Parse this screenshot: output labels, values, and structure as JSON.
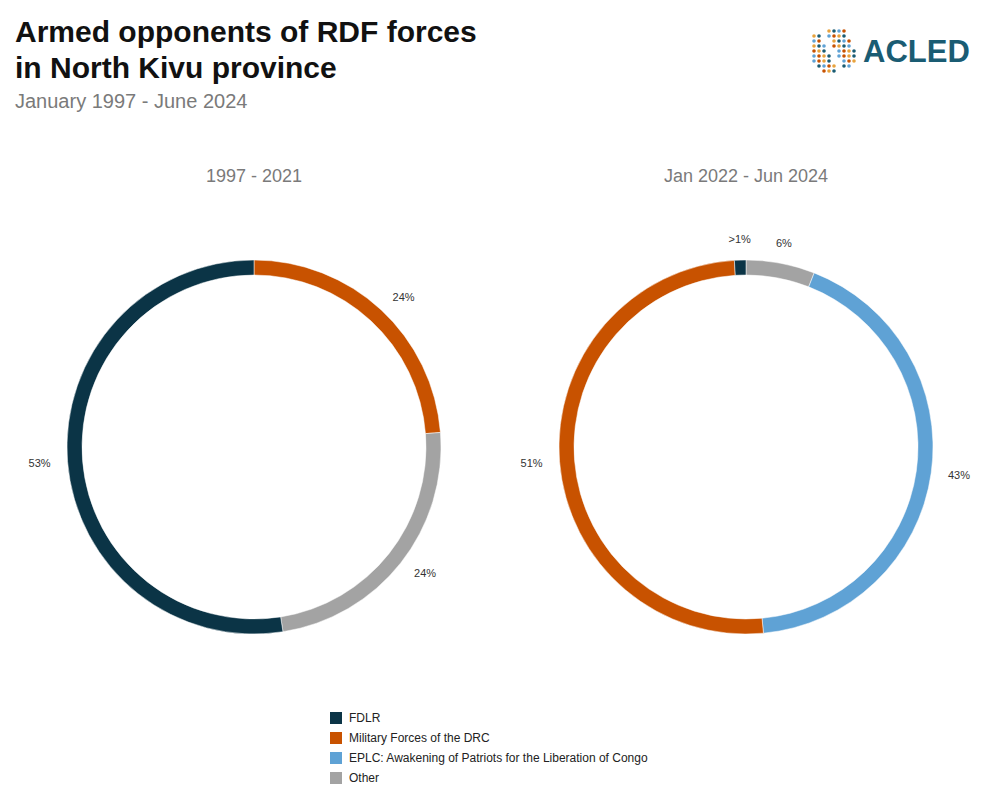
{
  "title": "Armed opponents of RDF forces in North Kivu province",
  "subtitle": "January 1997 - June 2024",
  "logo": "ACLED",
  "legend_items": [
    {
      "name": "FDLR",
      "color": "#0b3446"
    },
    {
      "name": "Military Forces of the DRC",
      "color": "#c85200"
    },
    {
      "name": "EPLC: Awakening of Patriots for the Liberation of Congo",
      "color": "#5fa2d5"
    },
    {
      "name": "Other",
      "color": "#a3a3a3"
    }
  ],
  "chart_data": [
    {
      "type": "pie",
      "title": "1997 - 2021",
      "categories": [
        "Military Forces of the DRC",
        "Other",
        "FDLR"
      ],
      "values": [
        24,
        24,
        53
      ],
      "value_labels": [
        "24%",
        "24%",
        "53%"
      ],
      "colors": [
        "#c85200",
        "#a3a3a3",
        "#0b3446"
      ],
      "data_labels": true
    },
    {
      "type": "pie",
      "title": "Jan 2022 - Jun 2024",
      "categories": [
        "Other",
        "EPLC: Awakening of Patriots for the Liberation of Congo",
        "Military Forces of the DRC",
        "FDLR"
      ],
      "values": [
        6,
        43,
        51,
        1
      ],
      "value_labels": [
        "6%",
        "43%",
        "51%",
        ">1%"
      ],
      "colors": [
        "#a3a3a3",
        "#5fa2d5",
        "#c85200",
        "#0b3446"
      ],
      "data_labels": true
    }
  ]
}
